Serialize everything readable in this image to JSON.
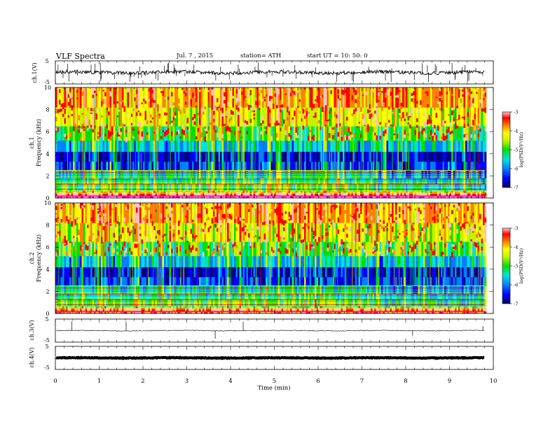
{
  "header": {
    "title": "VLF Spectra",
    "date": "Jul. 7 , 2015",
    "station": "station= ATH",
    "start": "start UT = 10: 50: 0"
  },
  "x_axis": {
    "label": "Time (min)",
    "ticks": [
      "0",
      "1",
      "2",
      "3",
      "4",
      "5",
      "6",
      "7",
      "8",
      "9",
      "10"
    ],
    "range": [
      0,
      10
    ]
  },
  "panels": {
    "ch1_wave": {
      "ylabel": "ch.1(V)",
      "top_tick": "5",
      "bottom_tick": "-5"
    },
    "ch1_spec": {
      "ylabel1": "ch.1",
      "ylabel2": "Frequency (kHz)",
      "ticks": [
        "0",
        "2",
        "4",
        "6",
        "8",
        "10"
      ]
    },
    "ch2_spec": {
      "ylabel1": "ch.2",
      "ylabel2": "Frequency (kHz)",
      "ticks": [
        "0",
        "2",
        "4",
        "6",
        "8",
        "10"
      ]
    },
    "ch3_wave": {
      "ylabel": "ch.3(V)",
      "top_tick": "5",
      "bottom_tick": "-5"
    },
    "ch4_wave": {
      "ylabel": "ch.4(V)",
      "top_tick": "5",
      "bottom_tick": "-5"
    }
  },
  "colorbar": {
    "label": "log(PSD(V²/Hz)",
    "ticks": [
      "-3",
      "-4",
      "-5",
      "-6",
      "-7"
    ],
    "colors": [
      "#000080",
      "#0000ff",
      "#0080ff",
      "#00e0e0",
      "#00e000",
      "#c8f000",
      "#ffff00",
      "#ff8000",
      "#ff0000",
      "#ffc0c0"
    ]
  },
  "chart_data": {
    "type": "heatmap",
    "title": "VLF Spectra",
    "xlabel": "Time (min)",
    "ylabel": "Frequency (kHz)",
    "xlim": [
      0,
      10
    ],
    "ylim": [
      0,
      10
    ],
    "data_end_min": 9.8,
    "colorbar_label": "log(PSD(V²/Hz)",
    "colorbar_range": [
      -7,
      -3
    ],
    "data_type": "Yes"
  }
}
